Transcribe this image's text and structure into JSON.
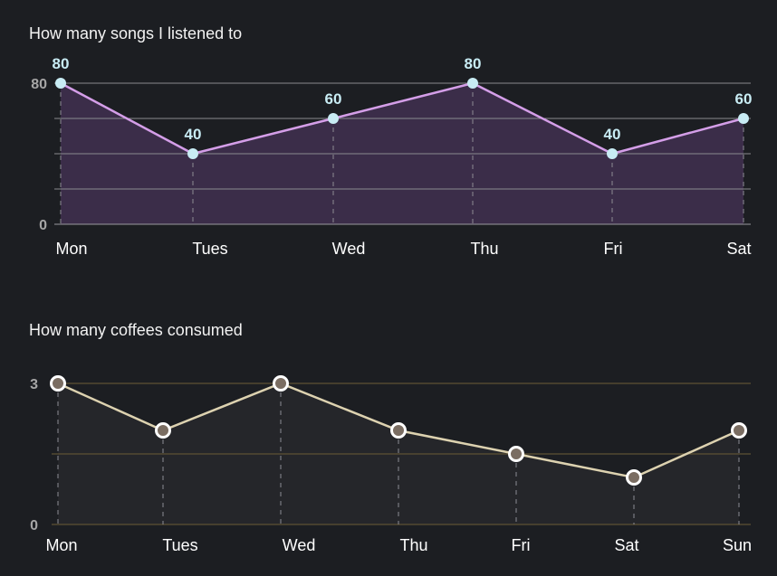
{
  "chart_data": [
    {
      "type": "area",
      "title": "How many songs I listened to",
      "categories": [
        "Mon",
        "Tues",
        "Wed",
        "Thu",
        "Fri",
        "Sat"
      ],
      "series": [
        {
          "values": [
            80,
            40,
            60,
            80,
            40,
            60
          ]
        }
      ],
      "ylim": [
        0,
        80
      ],
      "yticks": [
        "0",
        "80"
      ],
      "data_labels": [
        "80",
        "40",
        "60",
        "80",
        "40",
        "60"
      ],
      "grid": true,
      "colors": {
        "line": "#d49ee8",
        "fill": "#3d2e4c",
        "point": "#c8ecf4",
        "label": "#c8ecf4",
        "grid": "#8a8a8e"
      }
    },
    {
      "type": "area",
      "title": "How many coffees consumed",
      "categories": [
        "Mon",
        "Tues",
        "Wed",
        "Thu",
        "Fri",
        "Sat",
        "Sun"
      ],
      "series": [
        {
          "values": [
            3,
            2,
            3,
            2,
            1.5,
            1,
            2
          ]
        }
      ],
      "ylim": [
        0,
        3
      ],
      "yticks": [
        "0",
        "3"
      ],
      "grid": true,
      "colors": {
        "line": "#ddd2b0",
        "fill": "#25262a",
        "point": "#7a6d62",
        "point_ring": "#ffffff",
        "grid": "#5e5234"
      }
    }
  ]
}
